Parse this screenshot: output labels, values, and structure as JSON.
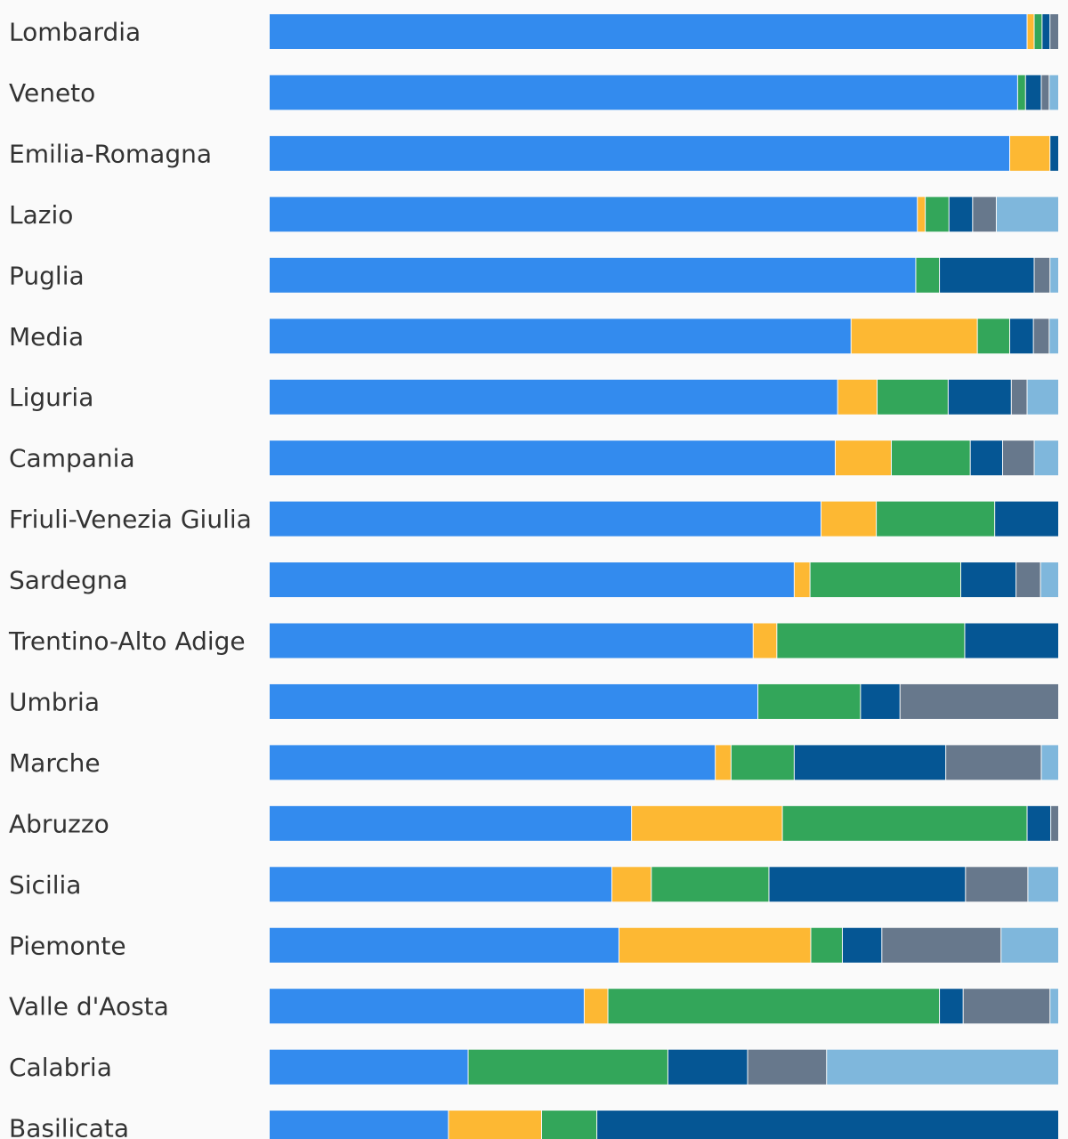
{
  "chart_data": {
    "type": "bar",
    "orientation": "horizontal",
    "stacked": true,
    "normalized": true,
    "xlim": [
      0,
      100
    ],
    "legend": "none",
    "grid": false,
    "series_colors": [
      "#338bee",
      "#fdb833",
      "#33a65a",
      "#055694",
      "#67788c",
      "#7fb7dc"
    ],
    "categories": [
      "Lombardia",
      "Veneto",
      "Emilia-Romagna",
      "Lazio",
      "Puglia",
      "Media",
      "Liguria",
      "Campania",
      "Friuli-Venezia Giulia",
      "Sardegna",
      "Trentino-Alto Adige",
      "Umbria",
      "Marche",
      "Abruzzo",
      "Sicilia",
      "Piemonte",
      "Valle d'Aosta",
      "Calabria",
      "Basilicata"
    ],
    "series": [
      {
        "values": [
          96.0,
          94.8,
          93.8,
          82.1,
          81.9,
          73.7,
          72.0,
          71.7,
          69.9,
          66.5,
          61.3,
          61.9,
          56.5,
          45.9,
          43.4,
          44.3,
          39.9,
          25.2,
          22.7
        ]
      },
      {
        "values": [
          0.9,
          0.0,
          5.1,
          1.0,
          0.0,
          16.0,
          5.0,
          7.1,
          7.0,
          2.0,
          3.0,
          0.0,
          2.0,
          19.1,
          5.0,
          24.3,
          3.0,
          0.0,
          11.8
        ]
      },
      {
        "values": [
          1.0,
          1.0,
          0.0,
          3.0,
          3.0,
          4.1,
          9.0,
          10.0,
          15.0,
          19.1,
          23.8,
          13.0,
          8.0,
          31.0,
          14.9,
          4.0,
          42.0,
          25.3,
          7.0
        ]
      },
      {
        "values": [
          1.0,
          2.0,
          1.1,
          3.0,
          12.0,
          3.0,
          8.0,
          4.1,
          8.1,
          7.0,
          11.9,
          5.0,
          19.2,
          3.0,
          24.9,
          5.0,
          3.0,
          10.1,
          58.5
        ]
      },
      {
        "values": [
          1.1,
          1.0,
          0.0,
          3.0,
          2.0,
          2.0,
          2.0,
          4.0,
          0.0,
          3.1,
          0.0,
          20.1,
          12.1,
          1.0,
          7.9,
          15.1,
          11.0,
          10.0,
          0.0
        ]
      },
      {
        "values": [
          0.0,
          1.2,
          0.0,
          7.9,
          1.1,
          1.2,
          4.0,
          3.1,
          0.0,
          2.3,
          0.0,
          0.0,
          2.2,
          0.0,
          3.9,
          7.3,
          1.1,
          29.4,
          0.0
        ]
      }
    ]
  }
}
